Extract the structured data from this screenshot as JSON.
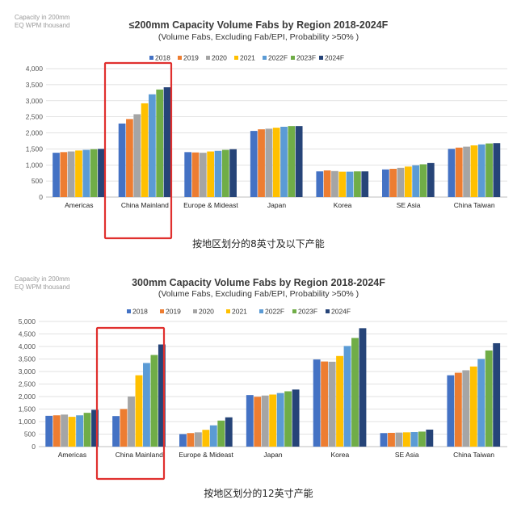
{
  "charts": [
    {
      "unit_label": "Capacity in 200mm\nEQ WPM thousand",
      "title": "≤200mm Capacity Volume Fabs by Region 2018-2024F",
      "subtitle": "(Volume Fabs, Excluding Fab/EPI, Probability >50% )",
      "caption": "按地区划分的8英寸及以下产能"
    },
    {
      "unit_label": "Capacity in 200mm\nEQ WPM thousand",
      "title": "300mm Capacity Volume Fabs by Region 2018-2024F",
      "subtitle": "(Volume Fabs, Excluding Fab/EPI, Probability >50% )",
      "caption": "按地区划分的12英寸产能"
    }
  ],
  "colors": [
    "#4472c4",
    "#ed7d31",
    "#a5a5a5",
    "#ffc000",
    "#5b9bd5",
    "#70ad47",
    "#264478"
  ],
  "highlight_color": "#e0302e",
  "chart_data": [
    {
      "type": "bar",
      "categories": [
        "Americas",
        "China Mainland",
        "Europe & Mideast",
        "Japan",
        "Korea",
        "SE Asia",
        "China Taiwan"
      ],
      "ylim": [
        0,
        4000
      ],
      "yticks": [
        "0",
        "500",
        "1,000",
        "1,500",
        "2,000",
        "2,500",
        "3,000",
        "3,500",
        "4,000"
      ],
      "legend_position": "top-right",
      "highlighted_category": "China Mainland",
      "series": [
        {
          "name": "2018",
          "values": [
            1380,
            2290,
            1400,
            2060,
            800,
            860,
            1500
          ]
        },
        {
          "name": "2019",
          "values": [
            1400,
            2430,
            1390,
            2110,
            830,
            880,
            1540
          ]
        },
        {
          "name": "2020",
          "values": [
            1420,
            2580,
            1380,
            2130,
            810,
            910,
            1570
          ]
        },
        {
          "name": "2021",
          "values": [
            1450,
            2920,
            1420,
            2160,
            790,
            950,
            1610
          ]
        },
        {
          "name": "2022F",
          "values": [
            1470,
            3200,
            1440,
            2190,
            790,
            990,
            1640
          ]
        },
        {
          "name": "2023F",
          "values": [
            1490,
            3350,
            1470,
            2210,
            800,
            1020,
            1670
          ]
        },
        {
          "name": "2024F",
          "values": [
            1500,
            3420,
            1490,
            2210,
            800,
            1060,
            1680
          ]
        }
      ]
    },
    {
      "type": "bar",
      "categories": [
        "Americas",
        "China Mainland",
        "Europe & Mideast",
        "Japan",
        "Korea",
        "SE Asia",
        "China Taiwan"
      ],
      "ylim": [
        0,
        5000
      ],
      "yticks": [
        "0",
        "500",
        "1,000",
        "1,500",
        "2,000",
        "2,500",
        "3,000",
        "3,500",
        "4,000",
        "4,500",
        "5,000"
      ],
      "legend_position": "top-right",
      "highlighted_category": "China Mainland",
      "series": [
        {
          "name": "2018",
          "values": [
            1230,
            1220,
            500,
            2060,
            3480,
            540,
            2850
          ]
        },
        {
          "name": "2019",
          "values": [
            1250,
            1500,
            540,
            1990,
            3400,
            550,
            2950
          ]
        },
        {
          "name": "2020",
          "values": [
            1280,
            2000,
            570,
            2040,
            3390,
            560,
            3050
          ]
        },
        {
          "name": "2021",
          "values": [
            1190,
            2850,
            670,
            2080,
            3620,
            570,
            3200
          ]
        },
        {
          "name": "2022F",
          "values": [
            1250,
            3340,
            850,
            2140,
            4020,
            580,
            3500
          ]
        },
        {
          "name": "2023F",
          "values": [
            1350,
            3660,
            1040,
            2210,
            4340,
            600,
            3840
          ]
        },
        {
          "name": "2024F",
          "values": [
            1470,
            4080,
            1170,
            2280,
            4730,
            680,
            4130
          ]
        }
      ]
    }
  ]
}
